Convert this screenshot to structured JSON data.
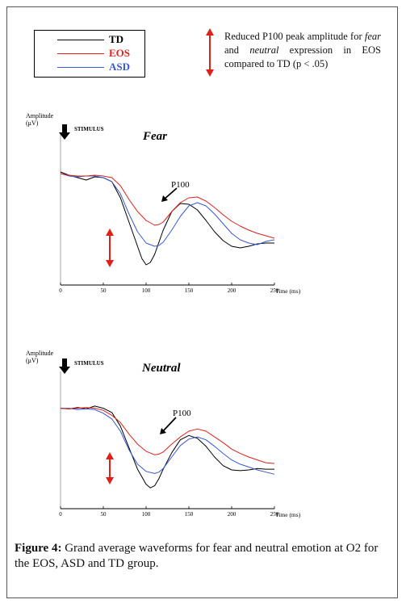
{
  "legend": {
    "items": [
      {
        "label": "TD",
        "color": "#000000"
      },
      {
        "label": "EOS",
        "color": "#e0201b"
      },
      {
        "label": "ASD",
        "color": "#3a57d6"
      }
    ]
  },
  "note": {
    "parts": [
      "Reduced P100 peak amplitude for ",
      "fear",
      " and ",
      "neutral",
      " expression in EOS compared to TD (p < .05)"
    ],
    "arrow_color": "#e0201b"
  },
  "caption": {
    "label": "Figure 4:",
    "text": " Grand average waveforms for fear and neutral emotion at O2 for the EOS, ASD and TD group."
  },
  "chart_data": [
    {
      "type": "line",
      "title": "Fear",
      "ylabel_line1": "Amplitude",
      "ylabel_line2": "(μV)",
      "xlabel": "Time (ms)",
      "stimulus_label": "STIMULUS",
      "annotation": "P100",
      "xlim": [
        0,
        250
      ],
      "xticks": [
        "0",
        "50",
        "100",
        "150",
        "200",
        "250"
      ],
      "series": [
        {
          "name": "TD",
          "color": "#000000",
          "x": [
            0,
            10,
            20,
            30,
            40,
            50,
            60,
            70,
            80,
            90,
            95,
            100,
            105,
            110,
            115,
            120,
            130,
            140,
            150,
            160,
            170,
            180,
            190,
            200,
            210,
            220,
            230,
            240,
            250
          ],
          "y": [
            5.2,
            4.8,
            4.5,
            4.2,
            4.6,
            4.5,
            4.0,
            2.0,
            -1.0,
            -4.0,
            -5.5,
            -6.3,
            -6.0,
            -5.0,
            -3.5,
            -2.0,
            0.3,
            1.3,
            1.2,
            0.5,
            -0.8,
            -2.2,
            -3.3,
            -4.0,
            -4.2,
            -4.0,
            -3.7,
            -3.6,
            -3.6
          ]
        },
        {
          "name": "EOS",
          "color": "#e0201b",
          "x": [
            0,
            10,
            20,
            30,
            40,
            50,
            60,
            70,
            80,
            90,
            100,
            110,
            115,
            120,
            130,
            140,
            150,
            160,
            170,
            180,
            190,
            200,
            210,
            220,
            230,
            240,
            250
          ],
          "y": [
            5.0,
            4.8,
            4.7,
            4.7,
            4.8,
            4.7,
            4.5,
            3.5,
            1.8,
            0.3,
            -0.8,
            -1.4,
            -1.3,
            -1.0,
            0.3,
            1.4,
            2.0,
            2.1,
            1.6,
            0.8,
            -0.1,
            -0.9,
            -1.5,
            -2.0,
            -2.4,
            -2.7,
            -3.0
          ]
        },
        {
          "name": "ASD",
          "color": "#3a57d6",
          "x": [
            0,
            10,
            20,
            30,
            40,
            50,
            60,
            70,
            80,
            90,
            100,
            110,
            115,
            120,
            130,
            140,
            150,
            160,
            170,
            180,
            190,
            200,
            210,
            220,
            230,
            240,
            250
          ],
          "y": [
            5.0,
            4.7,
            4.6,
            4.7,
            4.7,
            4.5,
            4.0,
            2.5,
            0.0,
            -2.2,
            -3.6,
            -4.0,
            -3.9,
            -3.5,
            -2.0,
            -0.3,
            1.0,
            1.4,
            1.0,
            0.0,
            -1.2,
            -2.4,
            -3.2,
            -3.6,
            -3.8,
            -3.4,
            -3.2
          ]
        }
      ]
    },
    {
      "type": "line",
      "title": "Neutral",
      "ylabel_line1": "Amplitude",
      "ylabel_line2": "(μV)",
      "xlabel": "Time (ms)",
      "stimulus_label": "STIMULUS",
      "annotation": "P100",
      "xlim": [
        0,
        250
      ],
      "xticks": [
        "0",
        "50",
        "100",
        "150",
        "200",
        "250"
      ],
      "series": [
        {
          "name": "TD",
          "color": "#000000",
          "x": [
            0,
            10,
            20,
            30,
            40,
            50,
            60,
            70,
            80,
            90,
            100,
            105,
            110,
            115,
            120,
            130,
            140,
            150,
            160,
            170,
            180,
            190,
            200,
            210,
            220,
            230,
            240,
            250
          ],
          "y": [
            5.0,
            4.9,
            5.1,
            4.9,
            5.3,
            5.0,
            4.4,
            2.5,
            -0.5,
            -3.5,
            -5.6,
            -6.1,
            -5.8,
            -4.8,
            -3.5,
            -1.2,
            0.6,
            1.2,
            0.8,
            -0.3,
            -1.8,
            -3.0,
            -3.6,
            -3.7,
            -3.6,
            -3.4,
            -3.5,
            -3.5
          ]
        },
        {
          "name": "EOS",
          "color": "#e0201b",
          "x": [
            0,
            10,
            20,
            30,
            40,
            50,
            60,
            70,
            80,
            90,
            100,
            110,
            115,
            120,
            130,
            140,
            150,
            160,
            170,
            180,
            190,
            200,
            210,
            220,
            230,
            240,
            250
          ],
          "y": [
            5.0,
            4.9,
            5.0,
            5.1,
            5.0,
            4.7,
            4.0,
            3.0,
            1.4,
            0.0,
            -1.0,
            -1.5,
            -1.4,
            -1.1,
            0.0,
            1.0,
            1.8,
            2.1,
            1.8,
            1.0,
            0.2,
            -0.7,
            -1.3,
            -1.8,
            -2.2,
            -2.6,
            -2.7
          ]
        },
        {
          "name": "ASD",
          "color": "#3a57d6",
          "x": [
            0,
            10,
            20,
            30,
            40,
            50,
            60,
            70,
            80,
            90,
            100,
            110,
            115,
            120,
            130,
            140,
            150,
            160,
            170,
            180,
            190,
            200,
            210,
            220,
            230,
            240,
            250
          ],
          "y": [
            5.0,
            5.0,
            4.8,
            4.9,
            4.8,
            4.3,
            3.5,
            1.8,
            -0.8,
            -2.8,
            -3.8,
            -4.1,
            -3.9,
            -3.4,
            -1.8,
            -0.2,
            0.7,
            1.0,
            0.6,
            -0.3,
            -1.3,
            -2.2,
            -2.8,
            -3.2,
            -3.6,
            -3.9,
            -4.2
          ]
        }
      ]
    }
  ]
}
